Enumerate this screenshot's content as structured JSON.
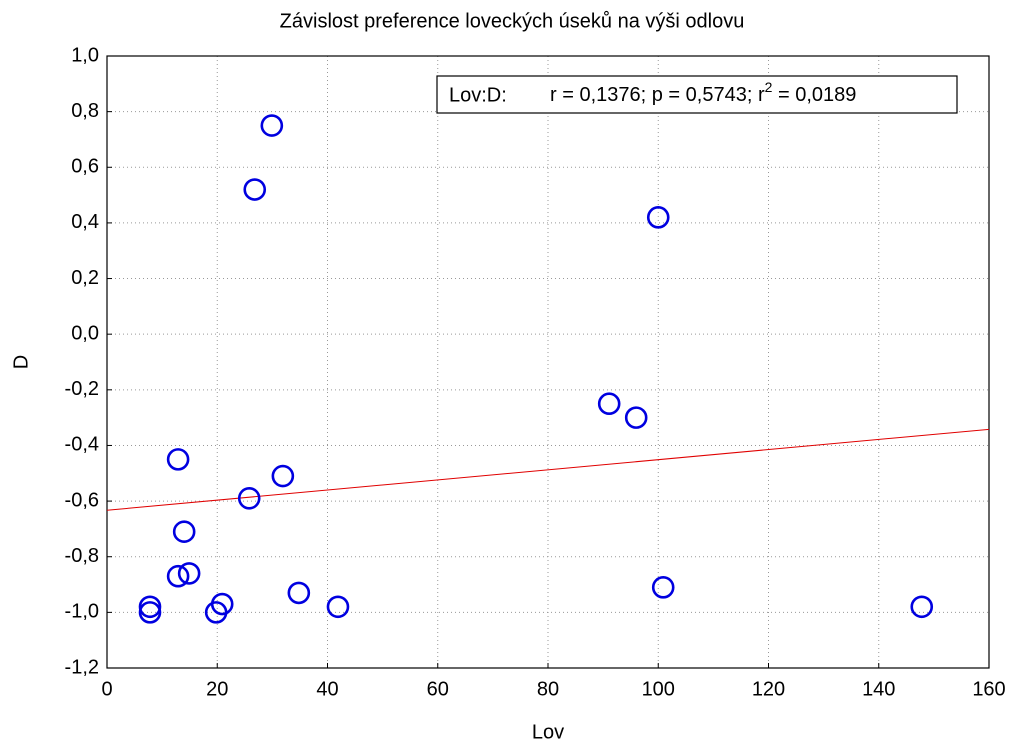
{
  "chart_data": {
    "type": "scatter",
    "title": "Závislost preference loveckých úseků na výši odlovu",
    "xlabel": "Lov",
    "ylabel": "D",
    "annotation": [
      "Lov:D:",
      "r = 0,1376; p = 0,5743; r",
      "2",
      " = 0,0189"
    ],
    "x": [
      7.8,
      7.8,
      12.9,
      12.9,
      14.9,
      14,
      19.8,
      20.9,
      25.8,
      26.8,
      29.9,
      31.9,
      34.8,
      41.9,
      91.1,
      96,
      100,
      100.9,
      147.8
    ],
    "series": [
      {
        "color": "#0000e0",
        "values": [
          -1.0,
          -0.98,
          -0.45,
          -0.87,
          -0.86,
          -0.71,
          -1.0,
          -0.97,
          -0.59,
          0.52,
          0.75,
          -0.51,
          -0.93,
          -0.98,
          -0.25,
          -0.3,
          0.42,
          -0.91,
          -0.98
        ]
      }
    ],
    "trend": {
      "color": "#e00000",
      "x": [
        0,
        160
      ],
      "values": [
        -0.633,
        -0.342
      ]
    },
    "xlim": [
      0,
      160
    ],
    "xticks": [
      0,
      20,
      40,
      60,
      80,
      100,
      120,
      140,
      160
    ],
    "ylim": [
      -1.2,
      1.0
    ],
    "yticks": [
      {
        "value": -1.2,
        "label": "-1,2"
      },
      {
        "value": -1.0,
        "label": "-1,0"
      },
      {
        "value": -0.8,
        "label": "-0,8"
      },
      {
        "value": -0.6,
        "label": "-0,6"
      },
      {
        "value": -0.4,
        "label": "-0,4"
      },
      {
        "value": -0.2,
        "label": "-0,2"
      },
      {
        "value": 0.0,
        "label": "0,0"
      },
      {
        "value": 0.2,
        "label": "0,2"
      },
      {
        "value": 0.4,
        "label": "0,4"
      },
      {
        "value": 0.6,
        "label": "0,6"
      },
      {
        "value": 0.8,
        "label": "0,8"
      },
      {
        "value": 1.0,
        "label": "1,0"
      }
    ],
    "grid": true
  }
}
